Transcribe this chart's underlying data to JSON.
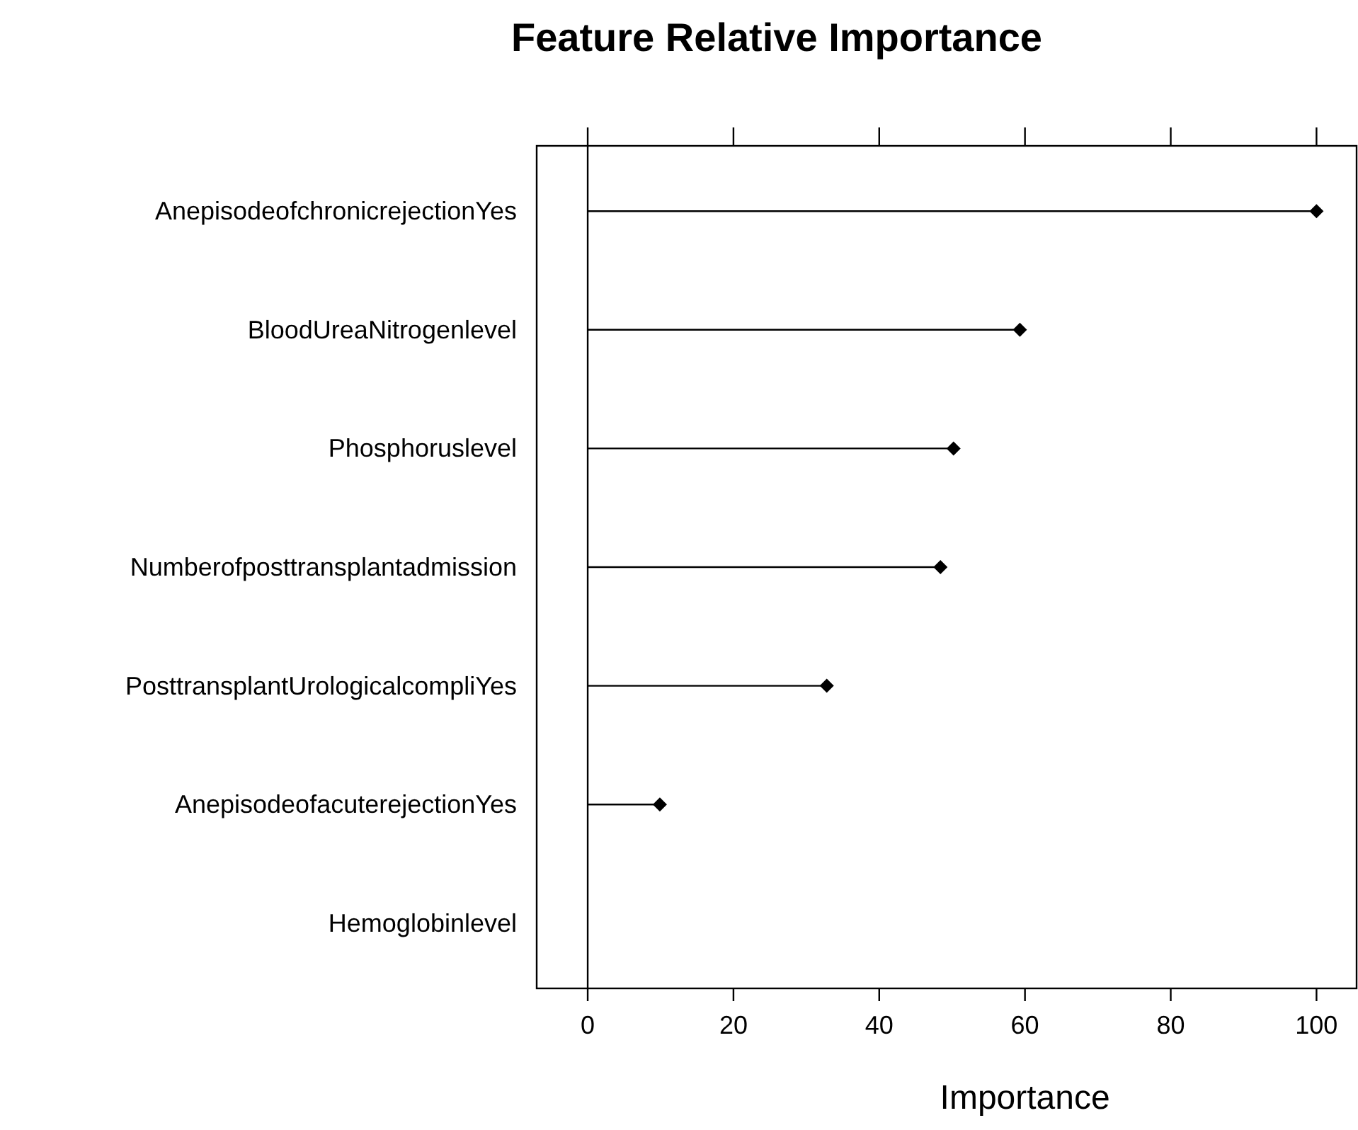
{
  "chart_data": {
    "type": "lollipop",
    "title": "Feature Relative Importance",
    "xlabel": "Importance",
    "orientation": "horizontal",
    "categories": [
      "AnepisodeofchronicrejectionYes",
      "BloodUreaNitrogenlevel",
      "Phosphoruslevel",
      "Numberofposttransplantadmission",
      "PosttransplantUrologicalcompliYes",
      "AnepisodeofacuterejectionYes",
      "Hemoglobinlevel"
    ],
    "values": [
      100,
      59.3,
      50.2,
      48.4,
      32.8,
      9.9,
      null
    ],
    "color": "#000000",
    "marker": "diamond",
    "xlim": [
      -7,
      105.5
    ],
    "xticks": [
      0,
      20,
      40,
      60,
      80,
      100
    ],
    "ref_lines": [
      {
        "axis": "x",
        "value": 0,
        "label": null
      }
    ],
    "grid": false
  }
}
